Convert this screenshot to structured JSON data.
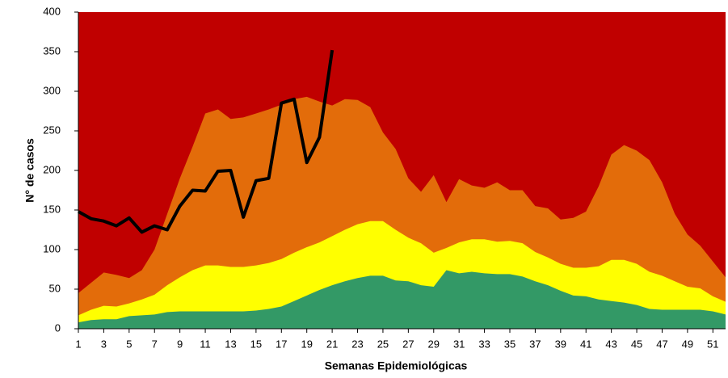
{
  "chart_data": {
    "type": "area",
    "xlabel": "Semanas Epidemiológicas",
    "ylabel": "N° de casos",
    "x": [
      1,
      2,
      3,
      4,
      5,
      6,
      7,
      8,
      9,
      10,
      11,
      12,
      13,
      14,
      15,
      16,
      17,
      18,
      19,
      20,
      21,
      22,
      23,
      24,
      25,
      26,
      27,
      28,
      29,
      30,
      31,
      32,
      33,
      34,
      35,
      36,
      37,
      38,
      39,
      40,
      41,
      42,
      43,
      44,
      45,
      46,
      47,
      48,
      49,
      50,
      51,
      52
    ],
    "xlim": [
      1,
      52
    ],
    "xticks": [
      1,
      3,
      5,
      7,
      9,
      11,
      13,
      15,
      17,
      19,
      21,
      23,
      25,
      27,
      29,
      31,
      33,
      35,
      37,
      39,
      41,
      43,
      45,
      47,
      49,
      51
    ],
    "ylim": [
      0,
      400
    ],
    "yticks": [
      0,
      50,
      100,
      150,
      200,
      250,
      300,
      350,
      400
    ],
    "background_color": "#c00000",
    "series": [
      {
        "color": "#e36c0a",
        "values": [
          45,
          58,
          71,
          68,
          64,
          74,
          100,
          145,
          190,
          230,
          272,
          277,
          265,
          267,
          272,
          277,
          283,
          290,
          293,
          287,
          282,
          290,
          289,
          280,
          248,
          227,
          190,
          173,
          194,
          160,
          189,
          181,
          178,
          185,
          175,
          175,
          155,
          152,
          138,
          140,
          148,
          180,
          220,
          232,
          225,
          213,
          185,
          145,
          119,
          105,
          85,
          65
        ]
      },
      {
        "color": "#ffff00",
        "values": [
          17,
          24,
          29,
          28,
          32,
          37,
          43,
          55,
          65,
          74,
          80,
          80,
          78,
          78,
          80,
          83,
          88,
          96,
          103,
          109,
          117,
          125,
          132,
          136,
          136,
          125,
          115,
          108,
          96,
          102,
          109,
          113,
          113,
          110,
          111,
          108,
          97,
          90,
          82,
          77,
          77,
          79,
          87,
          87,
          82,
          72,
          67,
          60,
          53,
          51,
          41,
          34
        ]
      },
      {
        "color": "#339966",
        "values": [
          8,
          11,
          12,
          12,
          16,
          17,
          18,
          21,
          22,
          22,
          22,
          22,
          22,
          22,
          23,
          25,
          28,
          35,
          42,
          49,
          55,
          60,
          64,
          67,
          67,
          61,
          60,
          55,
          53,
          74,
          70,
          72,
          70,
          69,
          69,
          66,
          60,
          55,
          48,
          42,
          41,
          37,
          35,
          33,
          30,
          25,
          24,
          24,
          24,
          24,
          22,
          18
        ]
      },
      {
        "type": "line",
        "color": "#000000",
        "values": [
          148,
          139,
          136,
          130,
          140,
          122,
          130,
          125,
          155,
          175,
          174,
          199,
          200,
          141,
          187,
          190,
          285,
          290,
          210,
          242,
          352,
          null,
          null,
          null,
          null,
          null,
          null,
          null,
          null,
          null,
          null,
          null,
          null,
          null,
          null,
          null,
          null,
          null,
          null,
          null,
          null,
          null,
          null,
          null,
          null,
          null,
          null,
          null,
          null,
          null,
          null,
          null
        ]
      }
    ]
  }
}
